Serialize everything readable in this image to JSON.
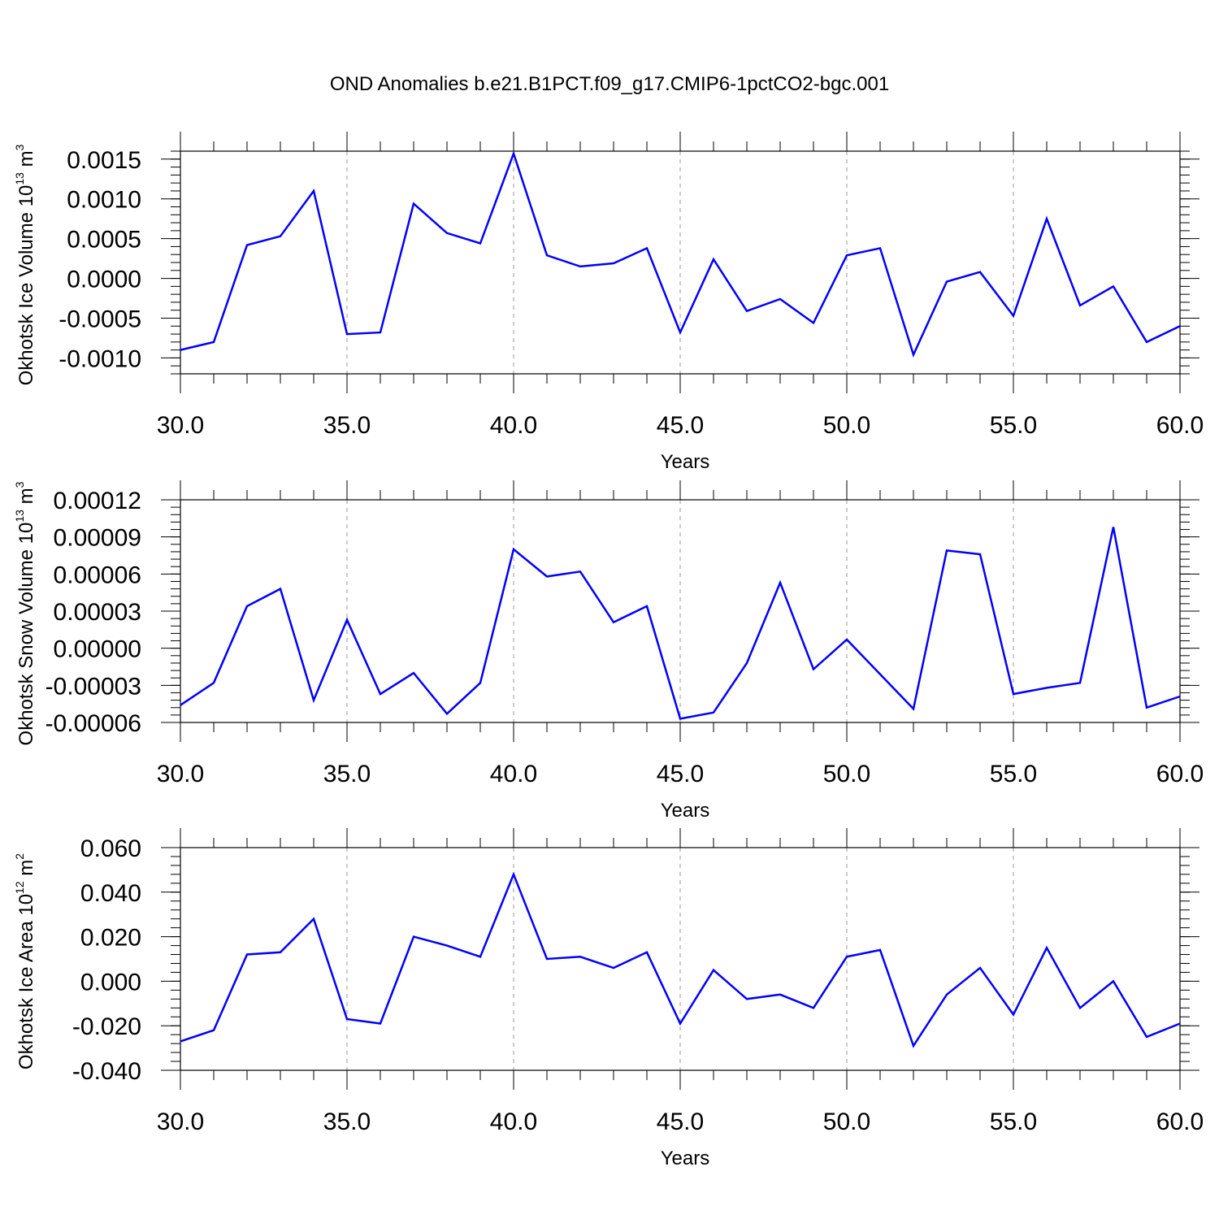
{
  "figure": {
    "title": "OND Anomalies b.e21.B1PCT.f09_g17.CMIP6-1pctCO2-bgc.001",
    "line_color": "#0000ff",
    "grid_color": "#999999"
  },
  "chart_data": [
    {
      "type": "line",
      "xlabel": "Years",
      "ylabel": "Okhotsk Ice Volume 10",
      "ylabel_exp": "13",
      "ylabel_unit": "m",
      "ylabel_unit_exp": "3",
      "xlim": [
        30,
        60
      ],
      "ylim": [
        -0.0012,
        0.0016
      ],
      "xticks": [
        30,
        35,
        40,
        45,
        50,
        55,
        60
      ],
      "xtick_labels": [
        "30.0",
        "35.0",
        "40.0",
        "45.0",
        "50.0",
        "55.0",
        "60.0"
      ],
      "yticks": [
        -0.001,
        -0.0005,
        0,
        0.0005,
        0.001,
        0.0015
      ],
      "ytick_labels": [
        "-0.0010",
        "-0.0005",
        "0.0000",
        "0.0005",
        "0.0010",
        "0.0015"
      ],
      "y_minor_step": 0.0001,
      "grid": "vertical dashed at labeled x ticks",
      "x": [
        30,
        31,
        32,
        33,
        34,
        35,
        36,
        37,
        38,
        39,
        40,
        41,
        42,
        43,
        44,
        45,
        46,
        47,
        48,
        49,
        50,
        51,
        52,
        53,
        54,
        55,
        56,
        57,
        58,
        59,
        60
      ],
      "y": [
        -0.0009,
        -0.0008,
        0.00042,
        0.00053,
        0.0011,
        -0.0007,
        -0.00068,
        0.00094,
        0.00057,
        0.00044,
        0.00157,
        0.00029,
        0.00015,
        0.00019,
        0.00038,
        -0.00068,
        0.00024,
        -0.00041,
        -0.00026,
        -0.00056,
        0.00029,
        0.00038,
        -0.00096,
        -4e-05,
        8e-05,
        -0.00047,
        0.00075,
        -0.00034,
        -0.0001,
        -0.0008,
        -0.0006
      ]
    },
    {
      "type": "line",
      "xlabel": "Years",
      "ylabel": "Okhotsk Snow Volume 10",
      "ylabel_exp": "13",
      "ylabel_unit": "m",
      "ylabel_unit_exp": "3",
      "xlim": [
        30,
        60
      ],
      "ylim": [
        -6e-05,
        0.00012
      ],
      "xticks": [
        30,
        35,
        40,
        45,
        50,
        55,
        60
      ],
      "xtick_labels": [
        "30.0",
        "35.0",
        "40.0",
        "45.0",
        "50.0",
        "55.0",
        "60.0"
      ],
      "yticks": [
        -6e-05,
        -3e-05,
        0,
        3e-05,
        6e-05,
        9e-05,
        0.00012
      ],
      "ytick_labels": [
        "-0.00006",
        "-0.00003",
        "0.00000",
        "0.00003",
        "0.00006",
        "0.00009",
        "0.00012"
      ],
      "y_minor_step": 6e-06,
      "grid": "vertical dashed at labeled x ticks",
      "x": [
        30,
        31,
        32,
        33,
        34,
        35,
        36,
        37,
        38,
        39,
        40,
        41,
        42,
        43,
        44,
        45,
        46,
        47,
        48,
        49,
        50,
        51,
        52,
        53,
        54,
        55,
        56,
        57,
        58,
        59,
        60
      ],
      "y": [
        -4.6e-05,
        -2.8e-05,
        3.4e-05,
        4.8e-05,
        -4.2e-05,
        2.3e-05,
        -3.7e-05,
        -2e-05,
        -5.3e-05,
        -2.8e-05,
        8e-05,
        5.8e-05,
        6.2e-05,
        2.1e-05,
        3.4e-05,
        -5.7e-05,
        -5.2e-05,
        -1.2e-05,
        5.3e-05,
        -1.7e-05,
        7e-06,
        -2.1e-05,
        -4.9e-05,
        7.9e-05,
        7.6e-05,
        -3.7e-05,
        -3.2e-05,
        -2.8e-05,
        9.8e-05,
        -4.8e-05,
        -3.9e-05
      ]
    },
    {
      "type": "line",
      "xlabel": "Years",
      "ylabel": "Okhotsk Ice Area 10",
      "ylabel_exp": "12",
      "ylabel_unit": "m",
      "ylabel_unit_exp": "2",
      "xlim": [
        30,
        60
      ],
      "ylim": [
        -0.04,
        0.06
      ],
      "xticks": [
        30,
        35,
        40,
        45,
        50,
        55,
        60
      ],
      "xtick_labels": [
        "30.0",
        "35.0",
        "40.0",
        "45.0",
        "50.0",
        "55.0",
        "60.0"
      ],
      "yticks": [
        -0.04,
        -0.02,
        0,
        0.02,
        0.04,
        0.06
      ],
      "ytick_labels": [
        "-0.040",
        "-0.020",
        "0.000",
        "0.020",
        "0.040",
        "0.060"
      ],
      "y_minor_step": 0.004,
      "grid": "vertical dashed at labeled x ticks",
      "x": [
        30,
        31,
        32,
        33,
        34,
        35,
        36,
        37,
        38,
        39,
        40,
        41,
        42,
        43,
        44,
        45,
        46,
        47,
        48,
        49,
        50,
        51,
        52,
        53,
        54,
        55,
        56,
        57,
        58,
        59,
        60
      ],
      "y": [
        -0.027,
        -0.022,
        0.012,
        0.013,
        0.028,
        -0.017,
        -0.019,
        0.02,
        0.016,
        0.011,
        0.048,
        0.01,
        0.011,
        0.006,
        0.013,
        -0.019,
        0.005,
        -0.008,
        -0.006,
        -0.012,
        0.011,
        0.014,
        -0.029,
        -0.006,
        0.006,
        -0.015,
        0.015,
        -0.012,
        0,
        -0.025,
        -0.019
      ]
    }
  ]
}
